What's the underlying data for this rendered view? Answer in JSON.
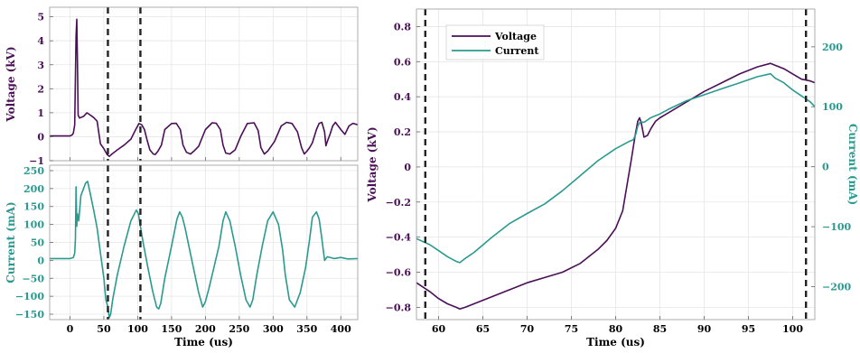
{
  "colors": {
    "voltage": "#4a0f57",
    "current": "#2a9a8f",
    "grid": "#e6e6e6",
    "axis": "#000000"
  },
  "chart_data": [
    {
      "type": "line",
      "panel": "top-left",
      "ylabel": "Voltage (kV)",
      "xlim": [
        -30,
        425
      ],
      "ylim": [
        -1,
        5.4
      ],
      "xticks": [
        0,
        50,
        100,
        150,
        200,
        250,
        300,
        350,
        400
      ],
      "yticks": [
        -1,
        0,
        1,
        2,
        3,
        4,
        5
      ],
      "ytick_labels": [
        "-1",
        "0",
        "1",
        "2",
        "3",
        "4",
        "5"
      ],
      "vlines": [
        56,
        104
      ],
      "grid": true,
      "series": [
        {
          "key": "voltage",
          "x": [
            -30,
            0,
            1,
            3,
            5,
            7,
            8,
            9,
            10,
            11,
            12,
            14,
            20,
            25,
            30,
            35,
            40,
            45,
            50,
            55,
            58,
            62,
            70,
            80,
            90,
            97,
            102,
            106,
            110,
            114,
            118,
            123,
            126,
            130,
            135,
            140,
            150,
            157,
            163,
            167,
            172,
            178,
            183,
            190,
            200,
            210,
            216,
            222,
            226,
            230,
            236,
            244,
            252,
            262,
            272,
            278,
            282,
            287,
            292,
            302,
            312,
            320,
            328,
            336,
            342,
            346,
            350,
            354,
            358,
            364,
            368,
            372,
            376,
            378,
            380,
            384,
            388,
            392,
            396,
            400,
            406,
            412,
            418,
            425
          ],
          "y": [
            0.03,
            0.03,
            0.05,
            0.07,
            0.15,
            0.5,
            2.5,
            4.2,
            4.9,
            3.2,
            0.9,
            0.78,
            0.85,
            1.0,
            0.9,
            0.8,
            0.65,
            -0.3,
            -0.5,
            -0.75,
            -0.82,
            -0.72,
            -0.55,
            -0.35,
            -0.1,
            0.3,
            0.55,
            0.5,
            0.3,
            -0.15,
            -0.55,
            -0.72,
            -0.74,
            -0.6,
            -0.35,
            0.3,
            0.55,
            0.56,
            0.3,
            -0.35,
            -0.65,
            -0.72,
            -0.6,
            -0.4,
            0.3,
            0.58,
            0.56,
            0.3,
            -0.35,
            -0.68,
            -0.72,
            -0.55,
            0.0,
            0.55,
            0.58,
            0.25,
            -0.45,
            -0.72,
            -0.6,
            -0.2,
            0.45,
            0.6,
            0.55,
            0.2,
            -0.45,
            -0.72,
            -0.6,
            -0.45,
            -0.25,
            0.3,
            0.56,
            0.6,
            0.2,
            -0.38,
            -0.2,
            0.1,
            0.45,
            0.6,
            0.45,
            0.3,
            0.1,
            0.45,
            0.56,
            0.5
          ]
        }
      ]
    },
    {
      "type": "line",
      "panel": "bottom-left",
      "xlabel": "Time (us)",
      "ylabel": "Current (mA)",
      "xlim": [
        -30,
        425
      ],
      "ylim": [
        -165,
        265
      ],
      "xticks": [
        0,
        50,
        100,
        150,
        200,
        250,
        300,
        350,
        400
      ],
      "xtick_labels": [
        "0",
        "50",
        "100",
        "150",
        "200",
        "250",
        "300",
        "350",
        "400"
      ],
      "yticks": [
        -150,
        -100,
        -50,
        0,
        50,
        100,
        150,
        200,
        250
      ],
      "ytick_labels": [
        "-150",
        "-100",
        "-50",
        "0",
        "50",
        "100",
        "150",
        "200",
        "250"
      ],
      "vlines": [
        56,
        104
      ],
      "grid": true,
      "series": [
        {
          "key": "current",
          "x": [
            -30,
            0,
            2,
            5,
            7,
            8,
            9,
            10,
            11,
            13,
            16,
            20,
            23,
            26,
            30,
            35,
            40,
            45,
            50,
            53,
            56,
            58,
            60,
            63,
            70,
            80,
            90,
            98,
            101,
            104,
            108,
            115,
            122,
            128,
            131,
            134,
            140,
            150,
            158,
            162,
            166,
            170,
            180,
            190,
            196,
            200,
            205,
            210,
            220,
            226,
            230,
            236,
            244,
            252,
            260,
            266,
            270,
            276,
            284,
            292,
            300,
            308,
            314,
            318,
            324,
            332,
            340,
            348,
            354,
            358,
            364,
            368,
            372,
            376,
            380,
            390,
            400,
            410,
            425
          ],
          "y": [
            5,
            5,
            6,
            8,
            20,
            60,
            205,
            95,
            130,
            110,
            180,
            200,
            215,
            220,
            185,
            140,
            90,
            20,
            -50,
            -110,
            -130,
            -160,
            -150,
            -110,
            -40,
            40,
            110,
            140,
            130,
            95,
            50,
            -20,
            -85,
            -130,
            -135,
            -120,
            -50,
            40,
            115,
            135,
            120,
            90,
            0,
            -90,
            -130,
            -115,
            -80,
            -40,
            40,
            110,
            135,
            110,
            40,
            -40,
            -110,
            -130,
            -110,
            -40,
            40,
            110,
            135,
            100,
            30,
            -40,
            -110,
            -130,
            -90,
            -20,
            60,
            120,
            135,
            115,
            60,
            0,
            10,
            5,
            8,
            4,
            5
          ]
        }
      ]
    },
    {
      "type": "line",
      "panel": "right",
      "xlabel": "Time (us)",
      "ylabel": "Voltage (kV)",
      "ylabel_right": "Current (mA)",
      "xlim": [
        57.5,
        102.5
      ],
      "ylim": [
        -0.87,
        0.9
      ],
      "y2lim": [
        -255,
        263
      ],
      "xticks": [
        60,
        65,
        70,
        75,
        80,
        85,
        90,
        95,
        100
      ],
      "xtick_labels": [
        "60",
        "65",
        "70",
        "75",
        "80",
        "85",
        "90",
        "95",
        "100"
      ],
      "yticks": [
        -0.8,
        -0.6,
        -0.4,
        -0.2,
        0,
        0.2,
        0.4,
        0.6,
        0.8
      ],
      "ytick_labels": [
        "-0.8",
        "-0.6",
        "-0.4",
        "-0.2",
        "0",
        "0.2",
        "0.4",
        "0.6",
        "0.8"
      ],
      "y2ticks": [
        -200,
        -100,
        0,
        100,
        200
      ],
      "y2tick_labels": [
        "-200",
        "-100",
        "0",
        "100",
        "200"
      ],
      "vlines": [
        58.5,
        101.5
      ],
      "grid": true,
      "legend": {
        "position": "top-left",
        "entries": [
          "Voltage",
          "Current"
        ]
      },
      "series": [
        {
          "name": "Voltage",
          "key": "voltage",
          "axis": "left",
          "x": [
            57.5,
            59,
            60,
            61,
            62,
            62.4,
            63,
            64,
            66,
            68,
            70,
            72,
            74,
            76,
            78,
            79,
            80,
            80.8,
            81.3,
            81.8,
            82.2,
            82.5,
            82.7,
            82.9,
            83.2,
            83.6,
            84,
            84.5,
            85,
            86,
            88,
            90,
            92,
            94,
            96,
            97.5,
            98,
            99,
            100,
            101,
            102,
            102.5
          ],
          "y": [
            -0.66,
            -0.71,
            -0.75,
            -0.78,
            -0.8,
            -0.81,
            -0.8,
            -0.78,
            -0.74,
            -0.7,
            -0.66,
            -0.63,
            -0.6,
            -0.55,
            -0.47,
            -0.42,
            -0.35,
            -0.25,
            -0.1,
            0.05,
            0.18,
            0.26,
            0.28,
            0.25,
            0.17,
            0.18,
            0.22,
            0.26,
            0.28,
            0.31,
            0.37,
            0.43,
            0.48,
            0.53,
            0.57,
            0.59,
            0.58,
            0.56,
            0.53,
            0.5,
            0.49,
            0.48
          ]
        },
        {
          "name": "Current",
          "key": "current",
          "axis": "right",
          "x": [
            57.5,
            59,
            60,
            61,
            62,
            62.4,
            63,
            64,
            66,
            68,
            70,
            72,
            74,
            76,
            78,
            80,
            81.5,
            82,
            82.3,
            82.5,
            82.8,
            83.2,
            84,
            85,
            86,
            88,
            90,
            92,
            94,
            96,
            97.5,
            98,
            99,
            100,
            101,
            102,
            102.5
          ],
          "y": [
            -120,
            -130,
            -140,
            -150,
            -158,
            -160,
            -153,
            -143,
            -118,
            -95,
            -78,
            -62,
            -40,
            -15,
            10,
            30,
            42,
            45,
            55,
            68,
            75,
            74,
            82,
            88,
            96,
            110,
            120,
            130,
            140,
            150,
            155,
            148,
            140,
            128,
            118,
            108,
            100
          ]
        }
      ]
    }
  ]
}
